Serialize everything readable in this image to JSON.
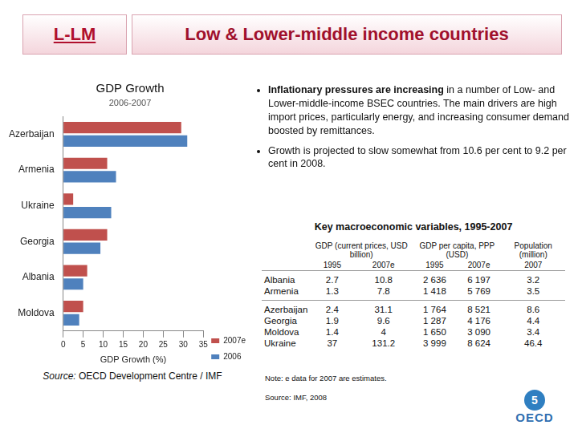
{
  "header": {
    "tag": "L-LM",
    "title": "Low & Lower-middle income countries"
  },
  "chart_data": {
    "type": "bar",
    "orientation": "horizontal",
    "title": "GDP Growth",
    "subtitle": "2006-2007",
    "categories": [
      "Azerbaijan",
      "Armenia",
      "Ukraine",
      "Georgia",
      "Albania",
      "Moldova"
    ],
    "series": [
      {
        "name": "2007e",
        "color": "#c0504d",
        "values": [
          29.5,
          11,
          2.5,
          11,
          6,
          5
        ]
      },
      {
        "name": "2006",
        "color": "#4f81bd",
        "values": [
          31,
          13.2,
          12,
          9.3,
          5,
          4
        ]
      }
    ],
    "xlim": [
      0,
      35
    ],
    "xticks": [
      0,
      5,
      10,
      15,
      20,
      25,
      30,
      35
    ],
    "x_label": "GDP Growth (%)",
    "grid": false,
    "legend": "right"
  },
  "chart_source": {
    "label": "Source:",
    "text": "OECD Development Centre / IMF"
  },
  "bullets": [
    {
      "bold": "Inflationary pressures are increasing",
      "text": " in a number of Low- and Lower-middle-income BSEC countries. The main drivers are high import prices, particularly energy, and increasing consumer demand boosted by remittances."
    },
    {
      "bold": "",
      "text": "Growth is projected to slow somewhat from 10.6 per cent to 9.2 per cent in 2008."
    }
  ],
  "table": {
    "title": "Key macroeconomic variables, 1995-2007",
    "column_groups": [
      {
        "label": "GDP (current prices, USD billion)",
        "sub": [
          "1995",
          "2007e"
        ]
      },
      {
        "label": "GDP per capita, PPP (USD)",
        "sub": [
          "1995",
          "2007e"
        ]
      },
      {
        "label": "Population (million)",
        "sub": [
          "2007"
        ]
      }
    ],
    "row_groups": [
      [
        [
          "Albania",
          "2.7",
          "10.8",
          "2 636",
          "6 197",
          "3.2"
        ],
        [
          "Armenia",
          "1.3",
          "7.8",
          "1 418",
          "5 769",
          "3.5"
        ]
      ],
      [
        [
          "Azerbaijan",
          "2.4",
          "31.1",
          "1 764",
          "8 521",
          "8.6"
        ],
        [
          "Georgia",
          "1.9",
          "9.6",
          "1 287",
          "4 176",
          "4.4"
        ],
        [
          "Moldova",
          "1.4",
          "4",
          "1 650",
          "3 090",
          "3.4"
        ],
        [
          "Ukraine",
          "37",
          "131.2",
          "3 999",
          "8 624",
          "46.4"
        ]
      ]
    ]
  },
  "note": "Note: e data for 2007 are estimates.",
  "source": "Source: IMF, 2008",
  "logo": {
    "page": "5",
    "text": "OECD"
  }
}
